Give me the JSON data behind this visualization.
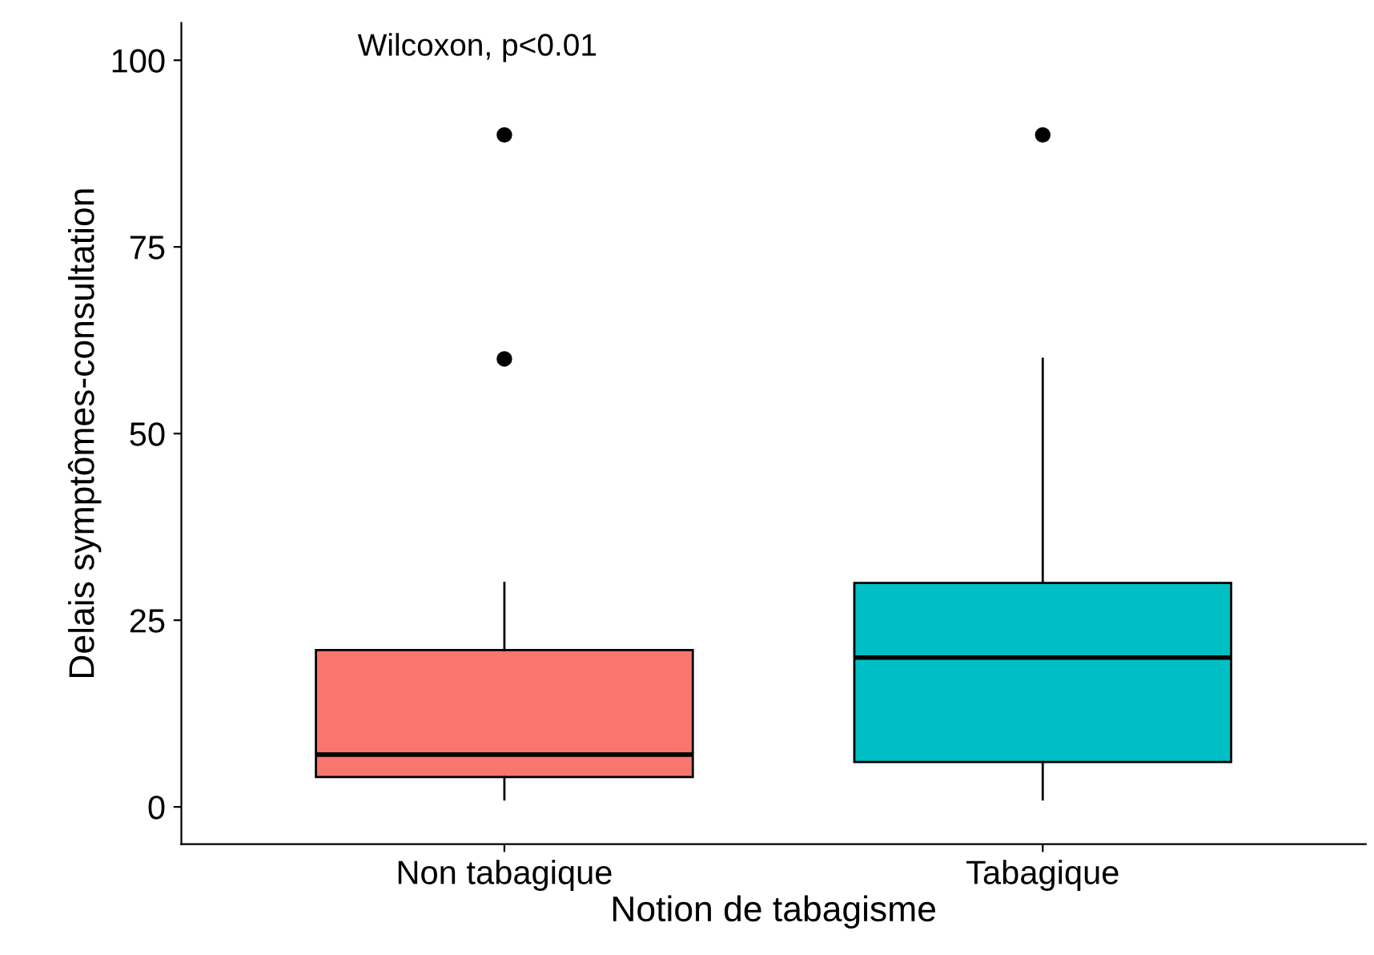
{
  "chart_data": {
    "type": "box",
    "xlabel": "Notion de tabagisme",
    "ylabel": "Delais symptômes-consultation",
    "categories": [
      "Non tabagique",
      "Tabagique"
    ],
    "colors": [
      "#f8766d",
      "#00bfc4"
    ],
    "boxes": [
      {
        "low": 1,
        "q1": 4,
        "median": 7,
        "q3": 21,
        "high": 30,
        "outliers": [
          60,
          90
        ]
      },
      {
        "low": 1,
        "q1": 6,
        "median": 20,
        "q3": 30,
        "high": 60,
        "outliers": [
          90
        ]
      }
    ],
    "ylim": [
      -5,
      105
    ],
    "yticks": [
      0,
      25,
      50,
      75,
      100
    ],
    "grid": false,
    "legend": false,
    "annotations": [
      "Wilcoxon, p<0.01"
    ]
  }
}
